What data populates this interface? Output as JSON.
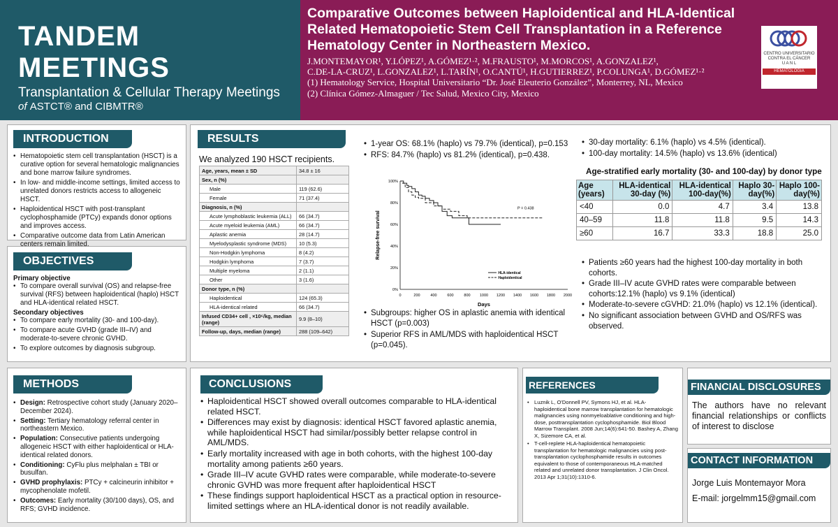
{
  "banner": {
    "title": "TANDEM MEETINGS",
    "subtitle": "Transplantation & Cellular Therapy Meetings",
    "of": "of",
    "orgs": "ASTCT® and CIBMTR®"
  },
  "poster": {
    "title": "Comparative Outcomes between Haploidentical and HLA-Identical Related Hematopoietic Stem Cell Transplantation in a Reference Hematology Center in Northeastern Mexico.",
    "authors1": "J.MONTEMAYOR¹, Y.LÓPEZ¹, A.GÓMEZ¹·², M.FRAUSTO¹, M.MORCOS¹, A.GONZALEZ¹,",
    "authors2": "C.DE-LA-CRUZ¹, L.GONZALEZ¹, L.TARÍN¹, O.CANTÚ¹, H.GUTIERREZ¹, P.COLUNGA¹, D.GÓMEZ¹·²",
    "affil1": "(1) Hematology Service, Hospital Universitario “Dr. José Eleuterio González”, Monterrey, NL, Mexico",
    "affil2": "(2) Clínica Gómez-Almaguer / Tec Salud, Mexico City, Mexico"
  },
  "logo": {
    "l1": "CENTRO UNIVERSITARIO",
    "l2": "CONTRA EL CÁNCER",
    "l3": "U A N L",
    "l4": "HEMATOLOGIA"
  },
  "intro": {
    "h": "INTRODUCTION",
    "items": [
      "Hematopoietic stem cell transplantation (HSCT) is a curative option for several hematologic malignancies and bone marrow failure syndromes.",
      "In low- and middle-income settings, limited access to unrelated donors restricts access to allogeneic HSCT.",
      "Haploidentical HSCT with post-transplant cyclophosphamide (PTCy) expands donor options and improves access.",
      "Comparative outcome data from Latin American centers remain limited."
    ]
  },
  "obj": {
    "h": "OBJECTIVES",
    "p_h": "Primary objective",
    "p_items": [
      "To compare overall survival (OS) and relapse-free survival (RFS) between haploidentical (haplo) HSCT and HLA-identical related HSCT."
    ],
    "s_h": "Secondary objectives",
    "s_items": [
      "To compare early mortality (30- and 100-day).",
      "To compare acute GVHD (grade III–IV) and moderate-to-severe chronic GVHD.",
      "To explore outcomes by diagnosis subgroup."
    ]
  },
  "results": {
    "h": "RESULTS",
    "intro": "We analyzed 190 HSCT recipients.",
    "table": [
      {
        "l": "Age, years, mean ± SD",
        "v": "34.8 ± 16",
        "t": "g"
      },
      {
        "l": "Sex, n (%)",
        "v": "",
        "t": "g"
      },
      {
        "l": "Male",
        "v": "119 (62.6)",
        "t": "i"
      },
      {
        "l": "Female",
        "v": "71 (37.4)",
        "t": "i"
      },
      {
        "l": "Diagnosis, n (%)",
        "v": "",
        "t": "g"
      },
      {
        "l": "Acute lymphoblastic leukemia (ALL)",
        "v": "66 (34.7)",
        "t": "i"
      },
      {
        "l": "Acute myeloid leukemia (AML)",
        "v": "66 (34.7)",
        "t": "i"
      },
      {
        "l": "Aplastic anemia",
        "v": "28 (14.7)",
        "t": "i"
      },
      {
        "l": "Myelodysplastic syndrome (MDS)",
        "v": "10 (5.3)",
        "t": "i"
      },
      {
        "l": "Non-Hodgkin lymphoma",
        "v": "8 (4.2)",
        "t": "i"
      },
      {
        "l": "Hodgkin lymphoma",
        "v": "7 (3.7)",
        "t": "i"
      },
      {
        "l": "Multiple myeloma",
        "v": "2 (1.1)",
        "t": "i"
      },
      {
        "l": "Other",
        "v": "3 (1.6)",
        "t": "i"
      },
      {
        "l": "Donor type, n (%)",
        "v": "",
        "t": "g"
      },
      {
        "l": "Haploidentical",
        "v": "124 (65.3)",
        "t": "i"
      },
      {
        "l": "HLA-identical related",
        "v": "66 (34.7)",
        "t": "i"
      },
      {
        "l": "Infused CD34+ cell , ×10⁶/kg, median (range)",
        "v": "9.9 (8–10)",
        "t": "g"
      },
      {
        "l": "Follow-up, days, median (range)",
        "v": "288 (109–642)",
        "t": "g"
      }
    ],
    "b1": [
      "1-year OS: 68.1% (haplo) vs 79.7% (identical), p=0.153",
      "RFS: 84.7% (haplo) vs 81.2% (identical), p=0.438."
    ],
    "b2": [
      "Subgroups: higher OS in aplastic anemia with identical HSCT (p=0.003)",
      "Superior RFS in AML/MDS with haploidentical HSCT (p=0.045)."
    ],
    "b3": [
      "30-day mortality: 6.1% (haplo) vs 4.5% (identical).",
      "100-day mortality: 14.5% (haplo) vs 13.6% (identical)"
    ],
    "mort_title": "Age-stratified early mortality (30- and 100-day) by donor type",
    "mort_head": [
      "Age (years)",
      "HLA-identical 30-day (%)",
      "HLA-identical 100-day(%)",
      "Haplo 30-day(%)",
      "Haplo 100-day(%)"
    ],
    "mort_rows": [
      [
        "<40",
        "0.0",
        "4.7",
        "3.4",
        "13.8"
      ],
      [
        "40–59",
        "11.8",
        "11.8",
        "9.5",
        "14.3"
      ],
      [
        "≥60",
        "16.7",
        "33.3",
        "18.8",
        "25.0"
      ]
    ],
    "b4": [
      "Patients ≥60 years had the highest 100-day mortality in both cohorts.",
      "Grade III–IV acute GVHD rates were comparable between cohorts:12.1% (haplo) vs 9.1% (identical)",
      "Moderate-to-severe cGVHD: 21.0% (haplo) vs 12.1% (identical).",
      "No significant association between GVHD and OS/RFS was observed."
    ]
  },
  "chart_data": {
    "type": "line",
    "ylabel": "Relapse-free survival",
    "xlabel": "Days",
    "xlim": [
      0,
      2000
    ],
    "ylim": [
      0,
      1
    ],
    "xticks": [
      0,
      200,
      400,
      600,
      800,
      1000,
      1200,
      1400,
      1600,
      1800,
      2000
    ],
    "yticks": [
      "0%",
      "20%",
      "40%",
      "60%",
      "80%",
      "100%"
    ],
    "annotation": "P = 0.438",
    "series": [
      {
        "name": "HLA-identical",
        "style": "solid",
        "x": [
          0,
          40,
          80,
          100,
          140,
          180,
          220,
          260,
          300,
          350,
          400,
          450,
          500,
          560,
          620,
          700,
          800,
          820,
          1000,
          1100,
          1200
        ],
        "y": [
          1,
          0.98,
          0.96,
          0.95,
          0.93,
          0.9,
          0.87,
          0.86,
          0.84,
          0.82,
          0.8,
          0.77,
          0.72,
          0.68,
          0.66,
          0.66,
          0.66,
          0.6,
          0.6,
          0.6,
          0.6
        ]
      },
      {
        "name": "Haploidentical",
        "style": "dashed",
        "x": [
          0,
          30,
          60,
          100,
          140,
          180,
          220,
          300,
          400,
          500,
          600,
          700,
          800,
          1000,
          1200,
          1400,
          1600,
          1700
        ],
        "y": [
          1,
          0.98,
          0.94,
          0.9,
          0.87,
          0.85,
          0.84,
          0.8,
          0.77,
          0.74,
          0.72,
          0.68,
          0.66,
          0.66,
          0.66,
          0.66,
          0.66,
          0.66
        ]
      }
    ]
  },
  "methods": {
    "h": "METHODS",
    "items": [
      [
        "Design:",
        " Retrospective cohort study (January 2020–December 2024)."
      ],
      [
        "Setting:",
        " Tertiary hematology referral center in northeastern Mexico."
      ],
      [
        "Population:",
        " Consecutive patients undergoing allogeneic HSCT with either haploidentical or HLA-identical related donors."
      ],
      [
        "Conditioning:",
        " CyFlu plus melphalan ± TBI or busulfan."
      ],
      [
        "GVHD prophylaxis:",
        " PTCy + calcineurin inhibitor + mycophenolate mofetil."
      ],
      [
        "Outcomes:",
        " Early mortality (30/100 days), OS, and RFS; GVHD incidence."
      ]
    ]
  },
  "conclusions": {
    "h": "CONCLUSIONS",
    "items": [
      "Haploidentical HSCT showed overall outcomes comparable to HLA-identical related HSCT.",
      "Differences may exist by diagnosis: identical HSCT favored aplastic anemia, while haploidentical HSCT had similar/possibly better relapse control in AML/MDS.",
      "Early mortality increased with age in both cohorts, with the highest 100-day mortality among patients ≥60 years.",
      "Grade III–IV acute GVHD rates were comparable, while moderate-to-severe chronic GVHD was more frequent after haploidentical HSCT",
      "These findings support haploidentical HSCT as a practical option in resource-limited settings where an HLA-identical donor is not readily available."
    ]
  },
  "refs": {
    "h": "REFERENCES",
    "items": [
      "Luznik L, O'Donnell PV, Symons HJ, et al. HLA-haploidentical bone marrow transplantation for hematologic malignancies using nonmyeloablative conditioning and high-dose, posttransplantation cyclophosphamide. Biol Blood Marrow Transplant. 2008 Jun;14(6):641-50. Bashey A, Zhang X, Sizemore CA, et al.",
      "T-cell-replete HLA-haploidentical hematopoietic transplantation for hematologic malignancies using post-transplantation cyclophosphamide results in outcomes equivalent to those of contemporaneous HLA-matched related and unrelated donor transplantation. J Clin Oncol. 2013 Apr 1;31(10):1310-6."
    ]
  },
  "fin": {
    "h": "FINANCIAL DISCLOSURES",
    "text": "The authors have no relevant financial relationships or conflicts of interest to disclose"
  },
  "contact": {
    "h": "CONTACT INFORMATION",
    "name": "Jorge Luis Montemayor Mora",
    "email": "E-mail: jorgelmm15@gmail.com"
  }
}
